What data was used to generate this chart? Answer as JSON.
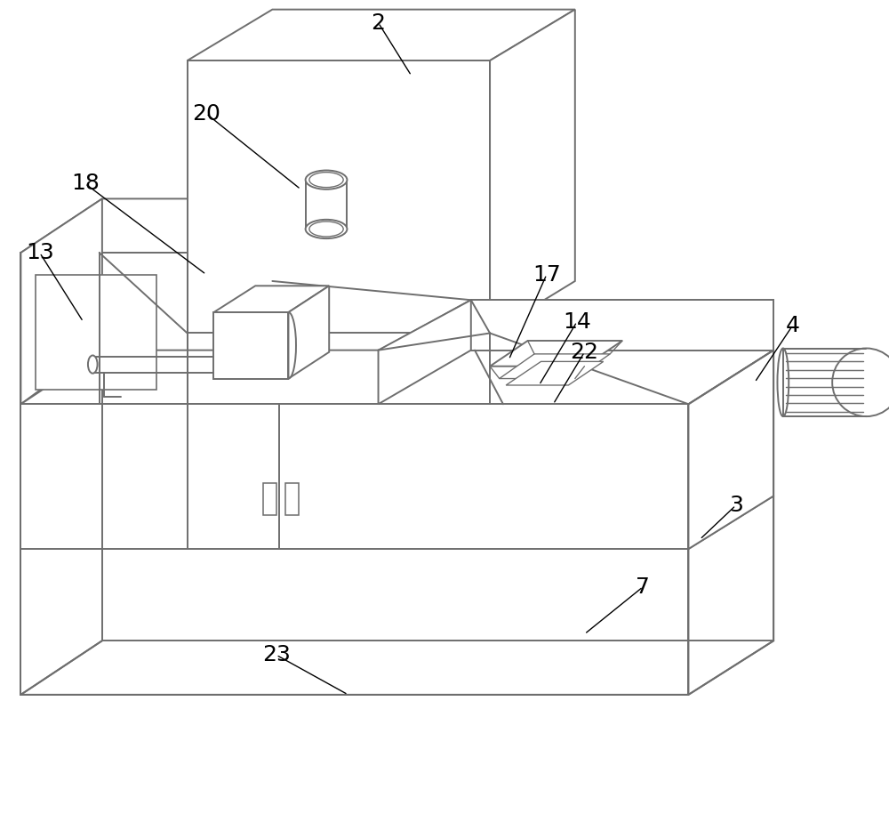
{
  "bg_color": "#ffffff",
  "line_color": "#6e6e6e",
  "line_width": 1.4,
  "label_fontsize": 18,
  "fig_width": 10.0,
  "fig_height": 9.33,
  "labels": [
    [
      "2",
      430,
      52,
      465,
      108
    ],
    [
      "20",
      248,
      148,
      348,
      228
    ],
    [
      "18",
      120,
      222,
      248,
      318
    ],
    [
      "13",
      72,
      295,
      118,
      368
    ],
    [
      "17",
      608,
      318,
      568,
      408
    ],
    [
      "14",
      640,
      368,
      600,
      435
    ],
    [
      "22",
      648,
      400,
      615,
      455
    ],
    [
      "4",
      868,
      372,
      828,
      432
    ],
    [
      "3",
      808,
      562,
      770,
      598
    ],
    [
      "7",
      710,
      648,
      648,
      698
    ],
    [
      "23",
      322,
      720,
      398,
      762
    ]
  ]
}
